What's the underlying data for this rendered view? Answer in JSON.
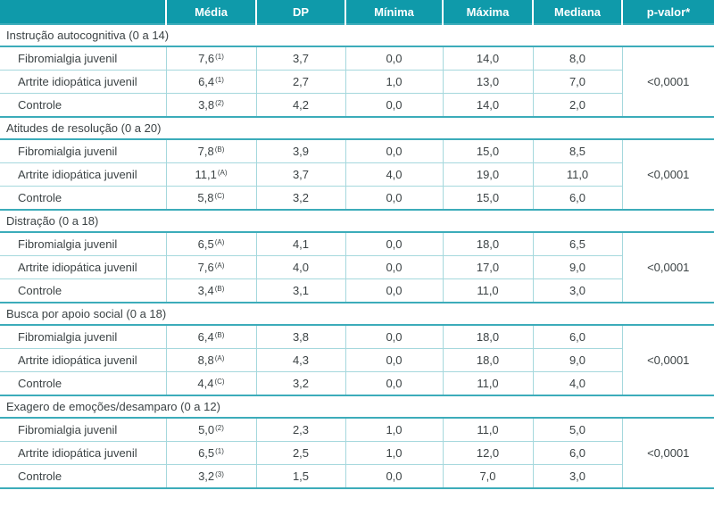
{
  "table": {
    "columns": [
      "",
      "Média",
      "DP",
      "Mínima",
      "Máxima",
      "Mediana",
      "p-valor*"
    ],
    "sections": [
      {
        "title": "Instrução autocognitiva (0 a 14)",
        "p_value": "<0,0001",
        "rows": [
          {
            "label": "Fibromialgia juvenil",
            "mean": "7,6",
            "sup": "(1)",
            "dp": "3,7",
            "min": "0,0",
            "max": "14,0",
            "median": "8,0"
          },
          {
            "label": "Artrite idiopática juvenil",
            "mean": "6,4",
            "sup": "(1)",
            "dp": "2,7",
            "min": "1,0",
            "max": "13,0",
            "median": "7,0"
          },
          {
            "label": "Controle",
            "mean": "3,8",
            "sup": "(2)",
            "dp": "4,2",
            "min": "0,0",
            "max": "14,0",
            "median": "2,0"
          }
        ]
      },
      {
        "title": "Atitudes de resolução (0 a 20)",
        "p_value": "<0,0001",
        "rows": [
          {
            "label": "Fibromialgia juvenil",
            "mean": "7,8",
            "sup": "(B)",
            "dp": "3,9",
            "min": "0,0",
            "max": "15,0",
            "median": "8,5"
          },
          {
            "label": "Artrite idiopática juvenil",
            "mean": "11,1",
            "sup": "(A)",
            "dp": "3,7",
            "min": "4,0",
            "max": "19,0",
            "median": "11,0"
          },
          {
            "label": "Controle",
            "mean": "5,8",
            "sup": "(C)",
            "dp": "3,2",
            "min": "0,0",
            "max": "15,0",
            "median": "6,0"
          }
        ]
      },
      {
        "title": "Distração (0 a 18)",
        "p_value": "<0,0001",
        "rows": [
          {
            "label": "Fibromialgia juvenil",
            "mean": "6,5",
            "sup": "(A)",
            "dp": "4,1",
            "min": "0,0",
            "max": "18,0",
            "median": "6,5"
          },
          {
            "label": "Artrite idiopática juvenil",
            "mean": "7,6",
            "sup": "(A)",
            "dp": "4,0",
            "min": "0,0",
            "max": "17,0",
            "median": "9,0"
          },
          {
            "label": "Controle",
            "mean": "3,4",
            "sup": "(B)",
            "dp": "3,1",
            "min": "0,0",
            "max": "11,0",
            "median": "3,0"
          }
        ]
      },
      {
        "title": "Busca por apoio social (0 a 18)",
        "p_value": "<0,0001",
        "rows": [
          {
            "label": "Fibromialgia juvenil",
            "mean": "6,4",
            "sup": "(B)",
            "dp": "3,8",
            "min": "0,0",
            "max": "18,0",
            "median": "6,0"
          },
          {
            "label": "Artrite idiopática juvenil",
            "mean": "8,8",
            "sup": "(A)",
            "dp": "4,3",
            "min": "0,0",
            "max": "18,0",
            "median": "9,0"
          },
          {
            "label": "Controle",
            "mean": "4,4",
            "sup": "(C)",
            "dp": "3,2",
            "min": "0,0",
            "max": "11,0",
            "median": "4,0"
          }
        ]
      },
      {
        "title": "Exagero de emoções/desamparo (0 a 12)",
        "p_value": "<0,0001",
        "rows": [
          {
            "label": "Fibromialgia juvenil",
            "mean": "5,0",
            "sup": "(2)",
            "dp": "2,3",
            "min": "1,0",
            "max": "11,0",
            "median": "5,0"
          },
          {
            "label": "Artrite idiopática juvenil",
            "mean": "6,5",
            "sup": "(1)",
            "dp": "2,5",
            "min": "1,0",
            "max": "12,0",
            "median": "6,0"
          },
          {
            "label": "Controle",
            "mean": "3,2",
            "sup": "(3)",
            "dp": "1,5",
            "min": "0,0",
            "max": "7,0",
            "median": "3,0"
          }
        ]
      }
    ]
  },
  "colors": {
    "header_bg": "#0f9aaa",
    "header_text": "#ffffff",
    "section_line": "#3cacba",
    "cell_border": "#a5d8dd",
    "text": "#3c4345"
  }
}
